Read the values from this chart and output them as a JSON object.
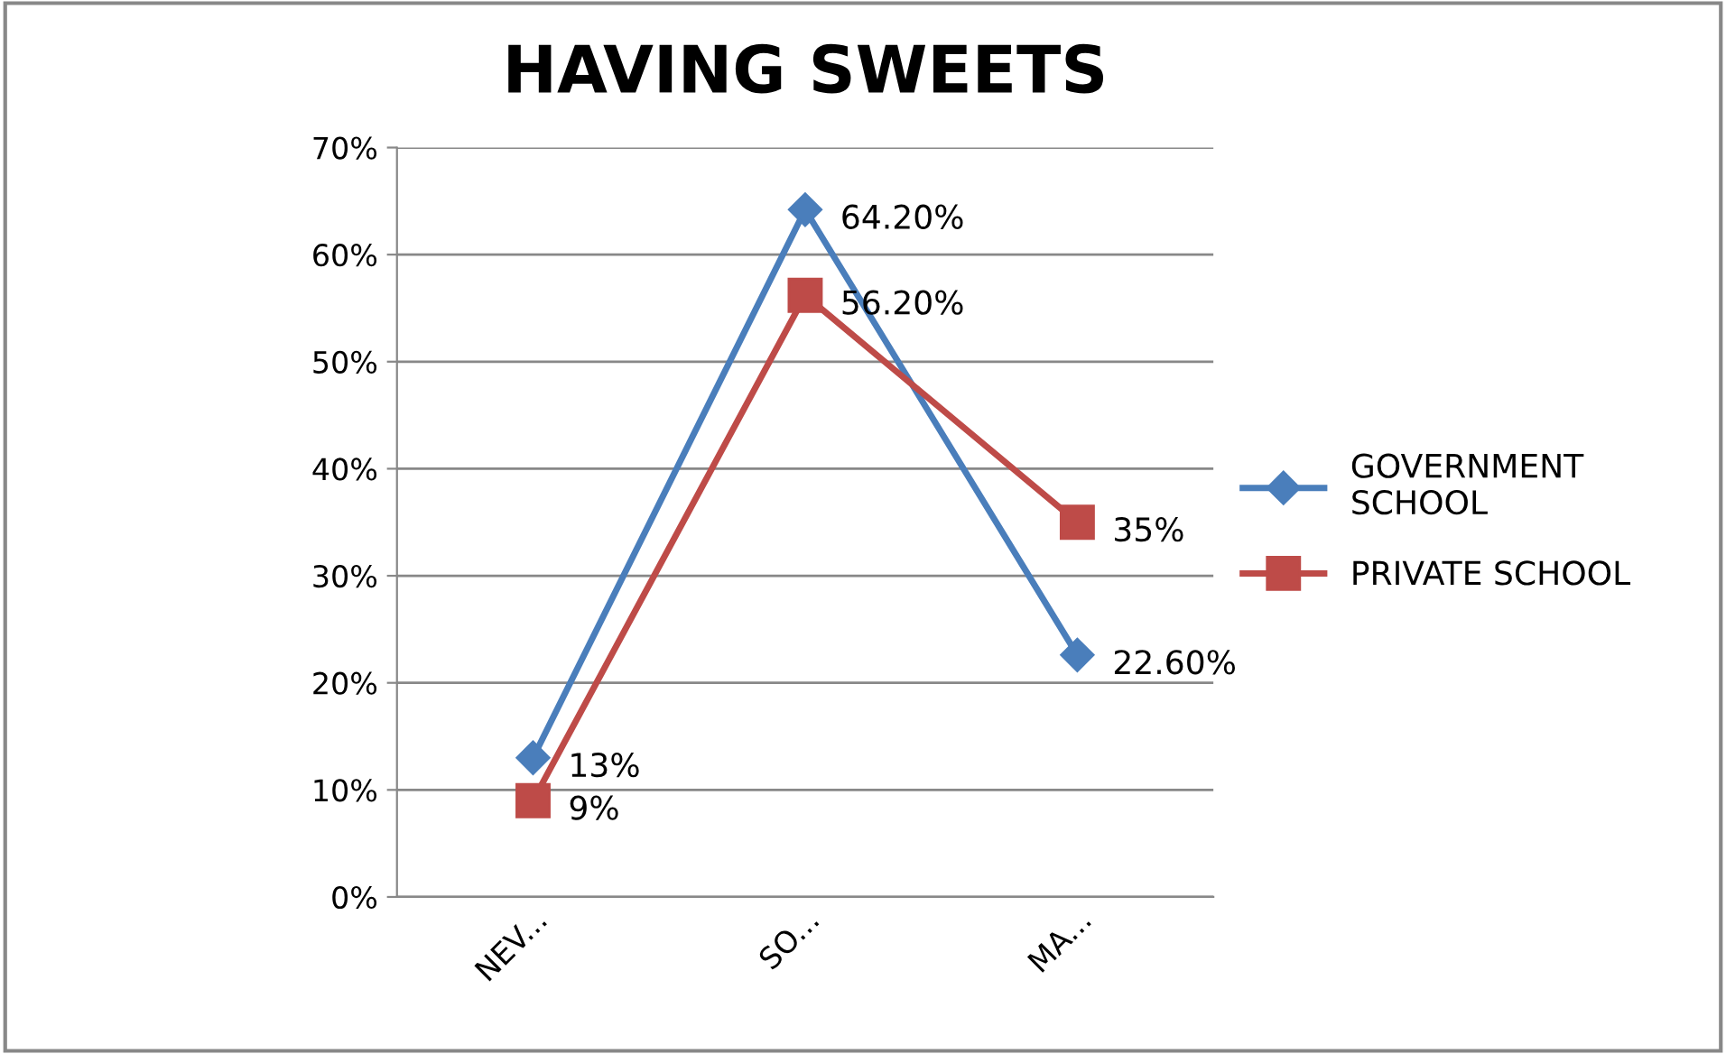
{
  "chart_data": {
    "type": "line",
    "title": "HAVING SWEETS",
    "categories": [
      "NEV...",
      "SO...",
      "MA..."
    ],
    "series": [
      {
        "name": "GOVERNMENT SCHOOL",
        "color": "#4a7ebb",
        "marker": "diamond",
        "values": [
          13,
          64.2,
          22.6
        ],
        "value_labels": [
          "13%",
          "64.20%",
          "22.60%"
        ]
      },
      {
        "name": "PRIVATE SCHOOL",
        "color": "#be4b48",
        "marker": "square",
        "values": [
          9,
          56.2,
          35
        ],
        "value_labels": [
          "9%",
          "56.20%",
          "35%"
        ]
      }
    ],
    "ylim": [
      0,
      70
    ],
    "yticks": [
      {
        "value": 0,
        "label": "0%"
      },
      {
        "value": 10,
        "label": "10%"
      },
      {
        "value": 20,
        "label": "20%"
      },
      {
        "value": 30,
        "label": "30%"
      },
      {
        "value": 40,
        "label": "40%"
      },
      {
        "value": 50,
        "label": "50%"
      },
      {
        "value": 60,
        "label": "60%"
      },
      {
        "value": 70,
        "label": "70%"
      }
    ],
    "grid": "y",
    "legend": "right"
  }
}
